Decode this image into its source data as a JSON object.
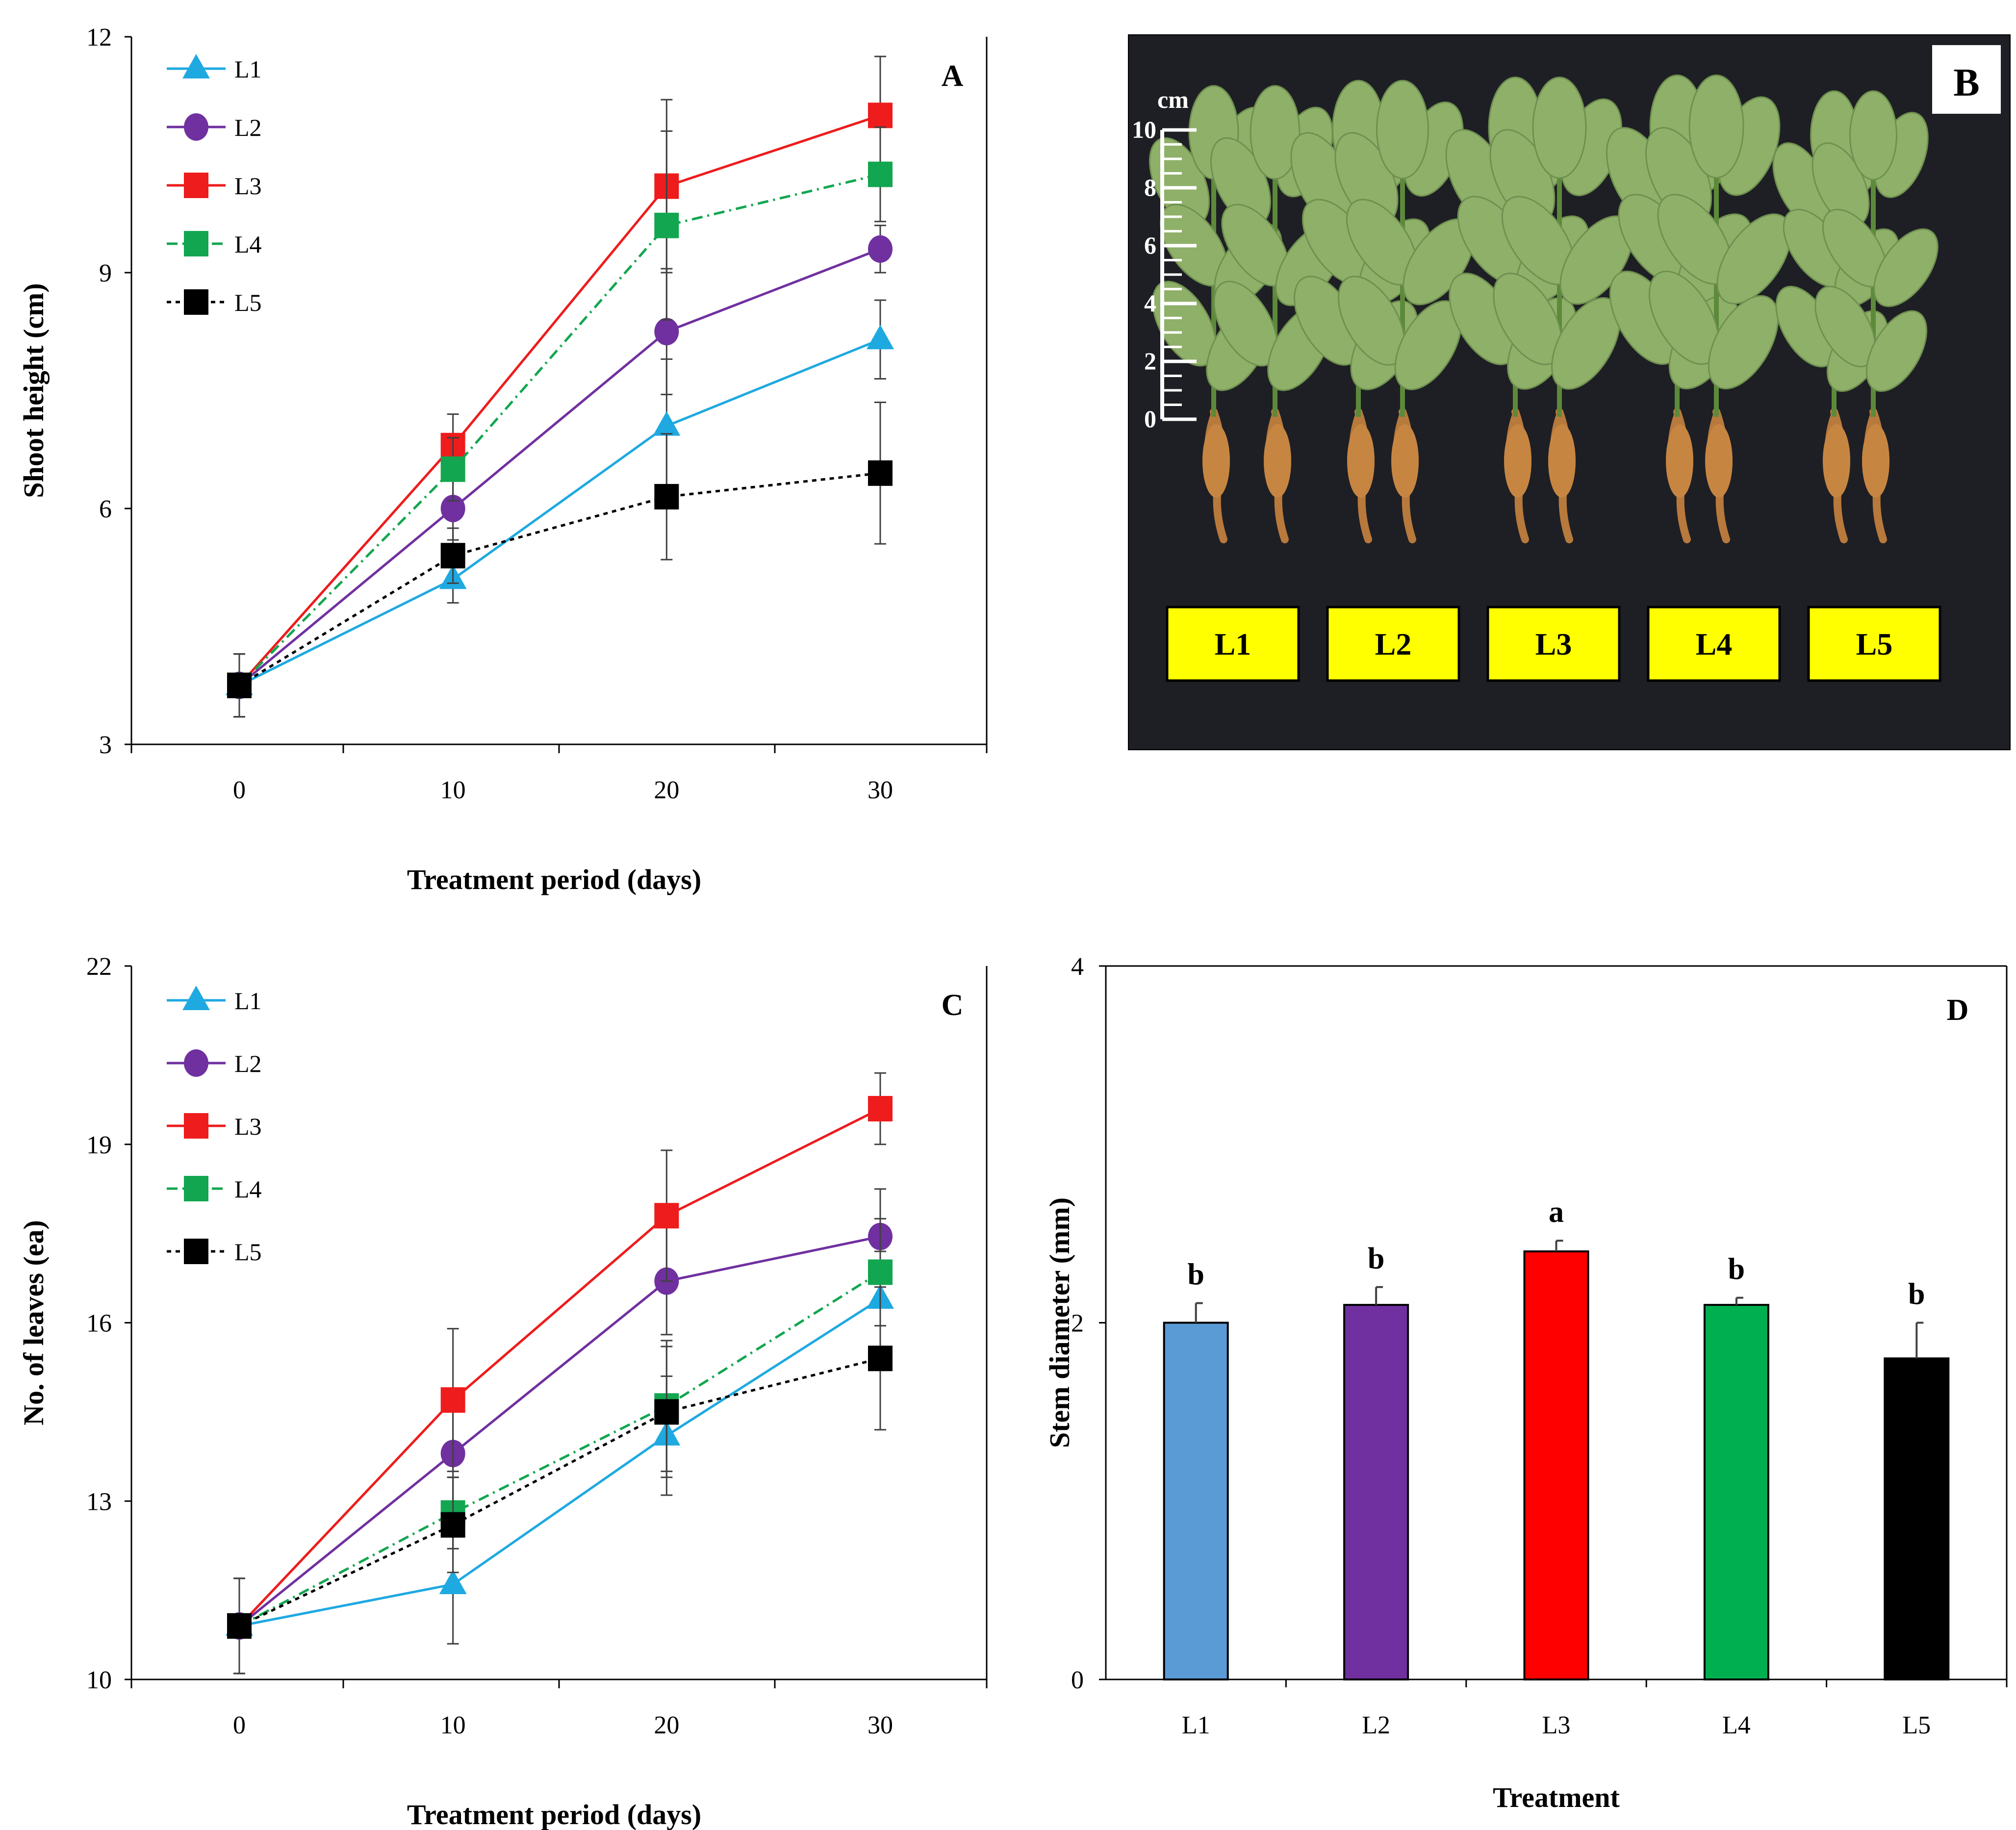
{
  "colors": {
    "L1": "#1FA9E1",
    "L2": "#7030A0",
    "L3": "#EE1C1C",
    "L4": "#12A650",
    "L5": "#000000",
    "barL1": "#5B9BD5",
    "barL2": "#7030A0",
    "barL3": "#FF0000",
    "barL4": "#00B050",
    "barL5": "#000000",
    "label_box": "#FFFF00",
    "photo_bg": "#1e1f24"
  },
  "chart_data": [
    {
      "panel": "A",
      "type": "line",
      "title": "",
      "panel_label": "A",
      "xlabel": "Treatment period (days)",
      "ylabel": "Shoot height (cm)",
      "x": [
        0,
        10,
        20,
        30
      ],
      "xticks": [
        "0",
        "10",
        "20",
        "30"
      ],
      "ylim": [
        3,
        12
      ],
      "yticks": [
        "3",
        "6",
        "9",
        "12"
      ],
      "legend_position": "top-left",
      "series": [
        {
          "name": "L1",
          "values": [
            3.75,
            5.1,
            7.05,
            8.15
          ],
          "errors": [
            0.4,
            0.3,
            0.85,
            0.5
          ],
          "marker": "triangle",
          "dash": "solid"
        },
        {
          "name": "L2",
          "values": [
            3.75,
            6.0,
            8.25,
            9.3
          ],
          "errors": [
            0.4,
            0.4,
            0.8,
            0.3
          ],
          "marker": "circle",
          "dash": "solid"
        },
        {
          "name": "L3",
          "values": [
            3.75,
            6.8,
            10.1,
            11.0
          ],
          "errors": [
            0.4,
            0.4,
            1.1,
            0.75
          ],
          "marker": "square",
          "dash": "solid"
        },
        {
          "name": "L4",
          "values": [
            3.75,
            6.5,
            9.6,
            10.25
          ],
          "errors": [
            0.4,
            0.4,
            1.2,
            0.6
          ],
          "marker": "square",
          "dash": "dashdot"
        },
        {
          "name": "L5",
          "values": [
            3.75,
            5.4,
            6.15,
            6.45
          ],
          "errors": [
            0.4,
            0.35,
            0.8,
            0.9
          ],
          "marker": "square",
          "dash": "dotted"
        }
      ]
    },
    {
      "panel": "C",
      "type": "line",
      "title": "",
      "panel_label": "C",
      "xlabel": "Treatment period (days)",
      "ylabel": "No. of leaves (ea)",
      "x": [
        0,
        10,
        20,
        30
      ],
      "xticks": [
        "0",
        "10",
        "20",
        "30"
      ],
      "ylim": [
        10,
        22
      ],
      "yticks": [
        "10",
        "13",
        "16",
        "19",
        "22"
      ],
      "legend_position": "top-left",
      "series": [
        {
          "name": "L1",
          "values": [
            10.9,
            11.6,
            14.1,
            16.4
          ],
          "errors": [
            0.8,
            1.0,
            1.0,
            0.8
          ],
          "marker": "triangle",
          "dash": "solid"
        },
        {
          "name": "L2",
          "values": [
            10.9,
            13.8,
            16.7,
            17.45
          ],
          "errors": [
            0.8,
            0.8,
            0.9,
            0.8
          ],
          "marker": "circle",
          "dash": "solid"
        },
        {
          "name": "L3",
          "values": [
            10.9,
            14.7,
            17.8,
            19.6
          ],
          "errors": [
            0.8,
            1.2,
            1.1,
            0.6
          ],
          "marker": "square",
          "dash": "solid"
        },
        {
          "name": "L4",
          "values": [
            10.9,
            12.8,
            14.6,
            16.85
          ],
          "errors": [
            0.8,
            0.6,
            1.1,
            0.9
          ],
          "marker": "square",
          "dash": "dashdot"
        },
        {
          "name": "L5",
          "values": [
            10.9,
            12.6,
            14.5,
            15.4
          ],
          "errors": [
            0.8,
            0.8,
            1.1,
            1.2
          ],
          "marker": "square",
          "dash": "dotted"
        }
      ]
    },
    {
      "panel": "D",
      "type": "bar",
      "title": "",
      "panel_label": "D",
      "xlabel": "Treatment",
      "ylabel": "Stem diameter (mm)",
      "categories": [
        "L1",
        "L2",
        "L3",
        "L4",
        "L5"
      ],
      "values": [
        2.0,
        2.1,
        2.4,
        2.1,
        1.8
      ],
      "errors": [
        0.11,
        0.1,
        0.06,
        0.04,
        0.2
      ],
      "significance": [
        "b",
        "b",
        "a",
        "b",
        "b"
      ],
      "ylim": [
        0,
        4
      ],
      "yticks": [
        "0",
        "2",
        "4"
      ]
    }
  ],
  "photo": {
    "panel_label": "B",
    "scale_unit": "cm",
    "scale_ticks": [
      "10",
      "8",
      "6",
      "4",
      "2",
      "0"
    ],
    "group_labels": [
      "L1",
      "L2",
      "L3",
      "L4",
      "L5"
    ]
  }
}
